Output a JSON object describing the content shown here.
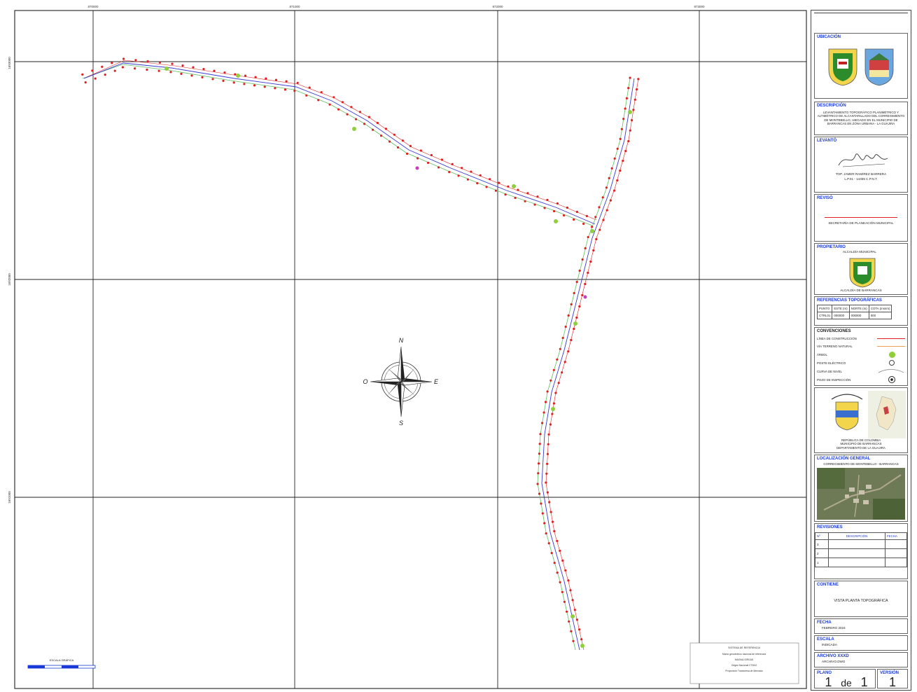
{
  "map": {
    "grid_top_labels": [
      "870000",
      "871000",
      "872000",
      "873000"
    ],
    "grid_left_labels": [
      "1693000",
      "1692000",
      "1691000"
    ],
    "north_arrow": {
      "n": "N",
      "s": "S",
      "e": "E",
      "w": "O"
    },
    "scale_bar_label": "ESCALA GRÁFICA",
    "note_title": "SISTEMA DE REFERENCIA",
    "note_lines": [
      "Marco geocéntrico nacional de referencia",
      "MAGNA-SIRGAS",
      "Origen Nacional CTM12",
      "Proyección Transversa de Mercator"
    ]
  },
  "title_block": {
    "ubicacion": {
      "heading": "UBICACIÓN",
      "shields": [
        "shield-icon",
        "shield-icon"
      ]
    },
    "descripcion": {
      "heading": "DESCRIPCIÓN",
      "text": "LEVANTAMIENTO TOPOGRÁFICO PLANIMÉTRICO Y ALTIMÉTRICO DE ALCANTARILLADO DEL CORREGIMIENTO DE MONTEBELLO, UBICADO EN EL MUNICIPIO DE BARRANCAS EN ZONA URBANA - LA GUAJIRA"
    },
    "levanto": {
      "heading": "LEVANTÓ",
      "name": "TOP. JAMER RAMÍREZ BARRERA",
      "license": "L.P.01 - 14455 C.P.N.T."
    },
    "reviso": {
      "heading": "REVISÓ",
      "name": "SECRETARÍA DE PLANEACIÓN MUNICIPAL"
    },
    "propietario": {
      "heading": "PROPIETARIO",
      "top_text": "ALCALDÍA MUNICIPAL",
      "bottom_text": "ALCALDÍA DE BARRANCAS"
    },
    "referencias": {
      "heading": "REFERENCIAS TOPOGRÁFICAS",
      "headers": [
        "PUNTO",
        "ESTE (m)",
        "NORTE (m)",
        "COTA (msnm)"
      ],
      "rows": [
        [
          "CTRL01",
          "000000",
          "000000",
          "000"
        ]
      ]
    },
    "convenciones": {
      "heading": "CONVENCIONES",
      "items": [
        {
          "label": "LÍNEA DE CONSTRUCCIÓN",
          "symbol": "line-red"
        },
        {
          "label": "VÍA TERRENO NATURAL",
          "symbol": "line-orange"
        },
        {
          "label": "ÁRBOL",
          "symbol": "tree-icon"
        },
        {
          "label": "POSTE ELÉCTRICO",
          "symbol": "pole-icon"
        },
        {
          "label": "CURVA DE NIVEL",
          "symbol": "contour-line"
        },
        {
          "label": "POZO DE INSPECCIÓN",
          "symbol": "manhole-icon"
        }
      ]
    },
    "colombia": {
      "text": "REPÚBLICA DE COLOMBIA\nMUNICIPIO DE BARRANCAS\nDEPARTAMENTO DE LA GUAJIRA"
    },
    "localizacion": {
      "heading": "LOCALIZACIÓN GENERAL",
      "text": "CORREGIMIENTO DE MONTEBELLO - BARRANCAS"
    },
    "revisiones": {
      "heading": "REVISIONES",
      "headers": [
        "Nº",
        "DESCRIPCIÓN",
        "FECHA"
      ],
      "rows": [
        [
          "3",
          "",
          ""
        ],
        [
          "2",
          "",
          ""
        ],
        [
          "1",
          "",
          ""
        ]
      ]
    },
    "contiene": {
      "heading": "CONTIENE",
      "text": "VISTA PLANTA TOPOGRÁFICA"
    },
    "fecha": {
      "heading": "FECHA",
      "value": "FEBRERO 2024"
    },
    "escala": {
      "heading": "ESCALA",
      "value": "INDICADA"
    },
    "archivo": {
      "heading": "ARCHIVO XXXD",
      "value": "ARCHIVO.DWG"
    },
    "plano": {
      "heading": "PLANO",
      "num": "1",
      "de": "de",
      "total": "1"
    },
    "version": {
      "heading": "VERSIÓN",
      "value": "1"
    }
  },
  "colors": {
    "heading": "#1a39d6",
    "survey": "#e02020",
    "centerline": "#3a3ad8",
    "tree": "#8ecf3a",
    "grid": "#222222"
  }
}
